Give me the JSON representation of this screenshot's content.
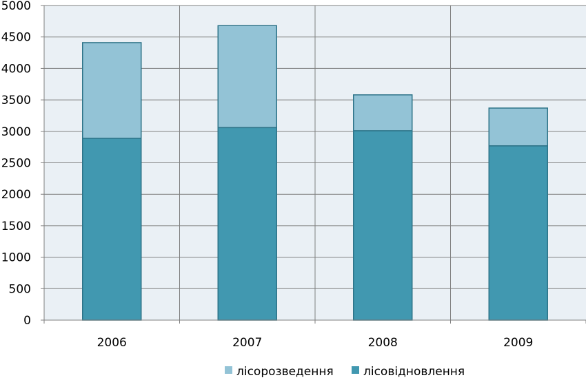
{
  "chart_data": {
    "type": "bar",
    "stacked": true,
    "categories": [
      "2006",
      "2007",
      "2008",
      "2009"
    ],
    "series": [
      {
        "name": "лісовідновлення",
        "values": [
          2890,
          3060,
          3010,
          2770
        ],
        "color": "#4198b0"
      },
      {
        "name": "лісорозведення",
        "values": [
          1520,
          1620,
          570,
          600
        ],
        "color": "#93c3d6"
      }
    ],
    "legend_order": [
      "лісорозведення",
      "лісовідновлення"
    ],
    "ylim": [
      0,
      5000
    ],
    "yticks": [
      "0",
      "500",
      "1000",
      "1500",
      "2000",
      "2500",
      "3000",
      "3500",
      "4000",
      "4500",
      "5000"
    ],
    "grid": true,
    "legend_position": "bottom",
    "colors": {
      "plot_background": "#eaf0f5",
      "gridline": "#7f7f7f",
      "bar_border": "#2d7388"
    }
  }
}
